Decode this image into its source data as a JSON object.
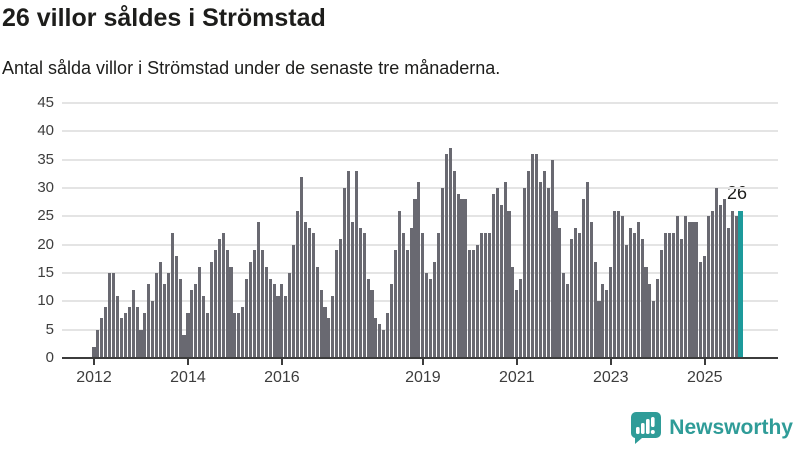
{
  "header": {
    "title": "26 villor såldes i Strömstad",
    "subtitle": "Antal sålda villor i Strömstad under de senaste tre månaderna."
  },
  "chart_data": {
    "type": "bar",
    "title": "26 villor såldes i Strömstad",
    "subtitle": "Antal sålda villor i Strömstad under de senaste tre månaderna.",
    "x_start": "2012-01",
    "x_end": "2025-10",
    "x_granularity": "month",
    "values": [
      2,
      5,
      7,
      9,
      15,
      15,
      11,
      7,
      8,
      9,
      12,
      9,
      5,
      8,
      13,
      10,
      15,
      17,
      13,
      15,
      22,
      18,
      14,
      4,
      8,
      12,
      13,
      16,
      11,
      8,
      17,
      19,
      21,
      22,
      19,
      16,
      8,
      8,
      9,
      14,
      17,
      19,
      24,
      19,
      16,
      14,
      13,
      11,
      13,
      11,
      15,
      20,
      26,
      32,
      24,
      23,
      22,
      16,
      12,
      9,
      7,
      11,
      19,
      21,
      30,
      33,
      24,
      33,
      23,
      22,
      14,
      12,
      7,
      6,
      5,
      8,
      13,
      19,
      26,
      22,
      19,
      23,
      28,
      31,
      22,
      15,
      14,
      17,
      22,
      30,
      36,
      37,
      33,
      29,
      28,
      28,
      19,
      19,
      20,
      22,
      22,
      22,
      29,
      30,
      27,
      31,
      26,
      16,
      12,
      14,
      30,
      33,
      36,
      36,
      31,
      33,
      30,
      35,
      26,
      23,
      15,
      13,
      21,
      23,
      22,
      28,
      31,
      24,
      17,
      10,
      13,
      12,
      16,
      26,
      26,
      25,
      20,
      23,
      22,
      24,
      21,
      16,
      13,
      10,
      14,
      19,
      22,
      22,
      22,
      25,
      21,
      25,
      24,
      24,
      24,
      17,
      18,
      25,
      26,
      30,
      27,
      28,
      23,
      26,
      25,
      26
    ],
    "highlight_last_value": 26,
    "highlight_label": "26",
    "ylim": [
      0,
      45
    ],
    "yticks": [
      0,
      5,
      10,
      15,
      20,
      25,
      30,
      35,
      40,
      45
    ],
    "xticks": [
      {
        "label": "2012",
        "month_index": 0
      },
      {
        "label": "2014",
        "month_index": 24
      },
      {
        "label": "2016",
        "month_index": 48
      },
      {
        "label": "2019",
        "month_index": 84
      },
      {
        "label": "2021",
        "month_index": 108
      },
      {
        "label": "2023",
        "month_index": 132
      },
      {
        "label": "2025",
        "month_index": 156
      }
    ],
    "grid": true,
    "legend": "none",
    "bar_color": "#696971",
    "highlight_color": "#1d9a9b",
    "axis_color": "#3c3c3c",
    "grid_color": "#e4e4e4"
  },
  "footer": {
    "brand": "Newsworthy",
    "brand_color": "#2f9c98",
    "logo_icon": "bar-chart-speech-bubble-icon"
  }
}
